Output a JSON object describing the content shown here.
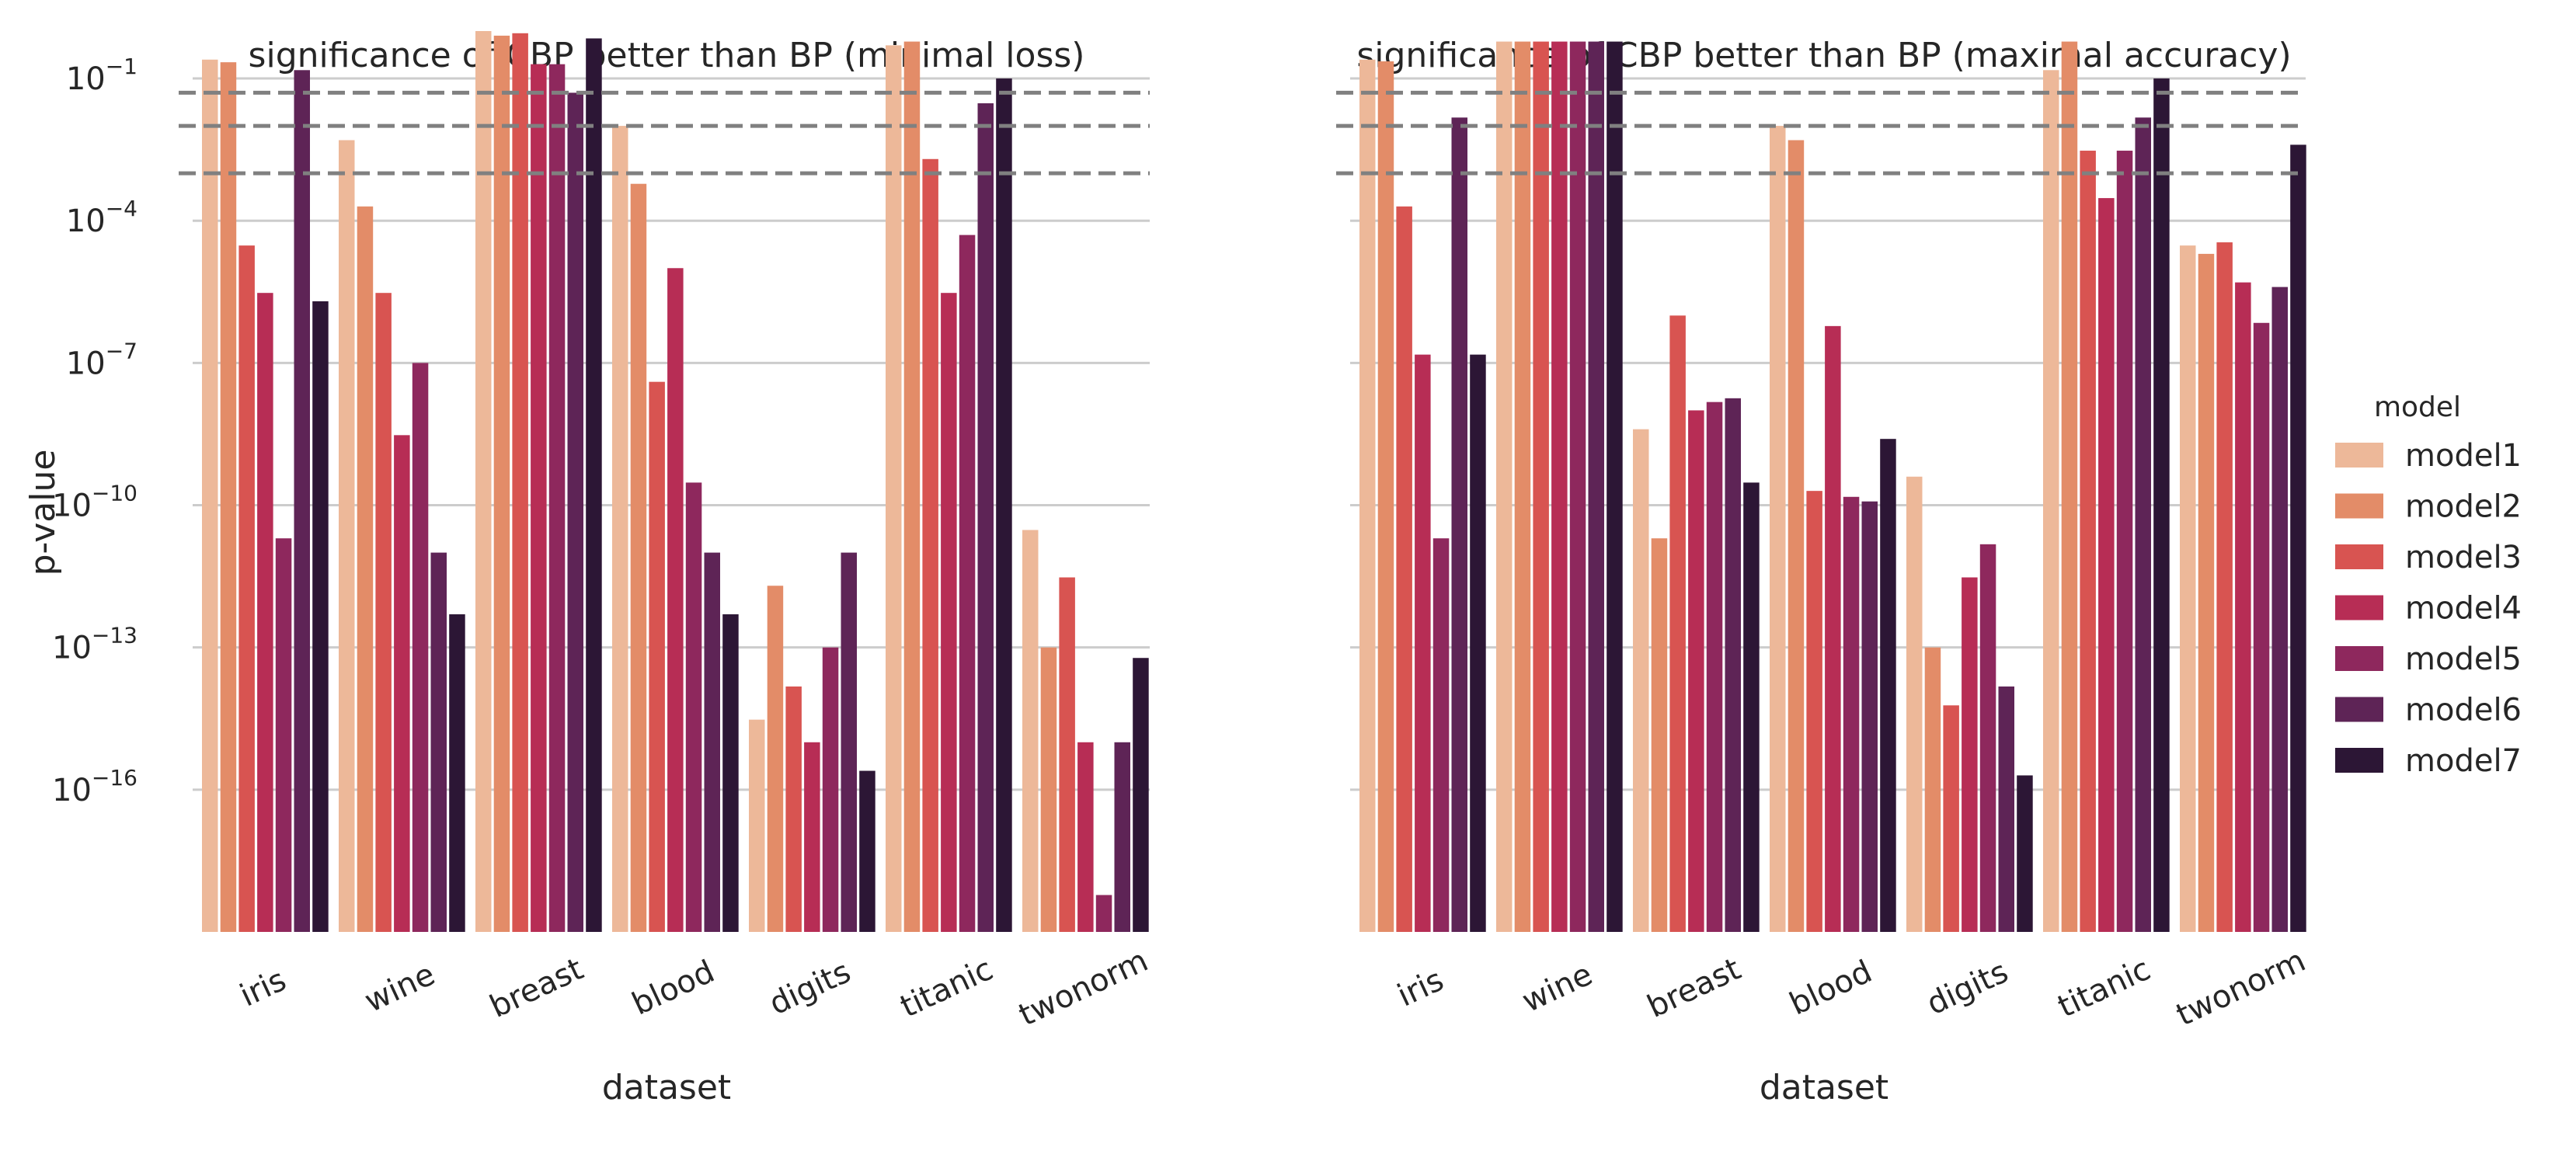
{
  "chart_data": [
    {
      "type": "bar",
      "title": "significance of CBP better than BP (minimal loss)",
      "xlabel": "dataset",
      "ylabel": "p-value",
      "yscale": "log",
      "ylim": [
        1e-19,
        1
      ],
      "yticks": [
        {
          "value": 0.1,
          "base": "10",
          "exp": "−1"
        },
        {
          "value": 0.0001,
          "base": "10",
          "exp": "−4"
        },
        {
          "value": 1e-07,
          "base": "10",
          "exp": "−7"
        },
        {
          "value": 1e-10,
          "base": "10",
          "exp": "−10"
        },
        {
          "value": 1e-13,
          "base": "10",
          "exp": "−13"
        },
        {
          "value": 1e-16,
          "base": "10",
          "exp": "−16"
        }
      ],
      "thresholds": [
        0.05,
        0.01,
        0.001
      ],
      "grid": true,
      "categories": [
        "iris",
        "wine",
        "breast",
        "blood",
        "digits",
        "titanic",
        "twonorm"
      ],
      "series": [
        {
          "name": "model1",
          "values": [
            0.25,
            0.005,
            1.0,
            0.01,
            3e-15,
            0.5,
            3e-11
          ]
        },
        {
          "name": "model2",
          "values": [
            0.22,
            0.0002,
            0.8,
            0.0006,
            2e-12,
            0.6,
            1e-13
          ]
        },
        {
          "name": "model3",
          "values": [
            3e-05,
            3e-06,
            0.9,
            4e-08,
            1.5e-14,
            0.002,
            3e-12
          ]
        },
        {
          "name": "model4",
          "values": [
            3e-06,
            3e-09,
            0.2,
            1e-05,
            1e-15,
            3e-06,
            1e-15
          ]
        },
        {
          "name": "model5",
          "values": [
            2e-11,
            1e-07,
            0.2,
            3e-10,
            1e-13,
            5e-05,
            6e-19
          ]
        },
        {
          "name": "model6",
          "values": [
            0.15,
            1e-11,
            0.05,
            1e-11,
            1e-11,
            0.03,
            1e-15
          ]
        },
        {
          "name": "model7",
          "values": [
            2e-06,
            5e-13,
            0.7,
            5e-13,
            2.5e-16,
            0.1,
            6e-14
          ]
        }
      ]
    },
    {
      "type": "bar",
      "title": "significance of CBP better than BP (maximal accuracy)",
      "xlabel": "dataset",
      "ylabel": "",
      "yscale": "log",
      "ylim": [
        1e-19,
        1
      ],
      "thresholds": [
        0.05,
        0.01,
        0.001
      ],
      "grid": true,
      "categories": [
        "iris",
        "wine",
        "breast",
        "blood",
        "digits",
        "titanic",
        "twonorm"
      ],
      "series": [
        {
          "name": "model1",
          "values": [
            0.25,
            0.6,
            4e-09,
            0.01,
            4e-10,
            0.15,
            3e-05
          ]
        },
        {
          "name": "model2",
          "values": [
            0.23,
            0.6,
            2e-11,
            0.005,
            1e-13,
            0.6,
            2e-05
          ]
        },
        {
          "name": "model3",
          "values": [
            0.0002,
            0.6,
            1e-06,
            2e-10,
            6e-15,
            0.003,
            3.5e-05
          ]
        },
        {
          "name": "model4",
          "values": [
            1.5e-07,
            0.6,
            1e-08,
            6e-07,
            3e-12,
            0.0003,
            5e-06
          ]
        },
        {
          "name": "model5",
          "values": [
            2e-11,
            0.6,
            1.5e-08,
            1.5e-10,
            1.5e-11,
            0.003,
            7e-07
          ]
        },
        {
          "name": "model6",
          "values": [
            0.015,
            0.6,
            1.8e-08,
            1.2e-10,
            1.5e-14,
            0.015,
            4e-06
          ]
        },
        {
          "name": "model7",
          "values": [
            1.5e-07,
            0.6,
            3e-10,
            2.5e-09,
            2e-16,
            0.1,
            0.004
          ]
        }
      ]
    }
  ],
  "legend": {
    "title": "model",
    "position": "right",
    "items": [
      {
        "label": "model1",
        "color": "#EDB899"
      },
      {
        "label": "model2",
        "color": "#E38C68"
      },
      {
        "label": "model3",
        "color": "#D85451"
      },
      {
        "label": "model4",
        "color": "#B72D55"
      },
      {
        "label": "model5",
        "color": "#8E285D"
      },
      {
        "label": "model6",
        "color": "#5E2456"
      },
      {
        "label": "model7",
        "color": "#2C1635"
      }
    ]
  },
  "colors": {
    "grid": "#CCCCCC",
    "threshold": "#808080"
  }
}
